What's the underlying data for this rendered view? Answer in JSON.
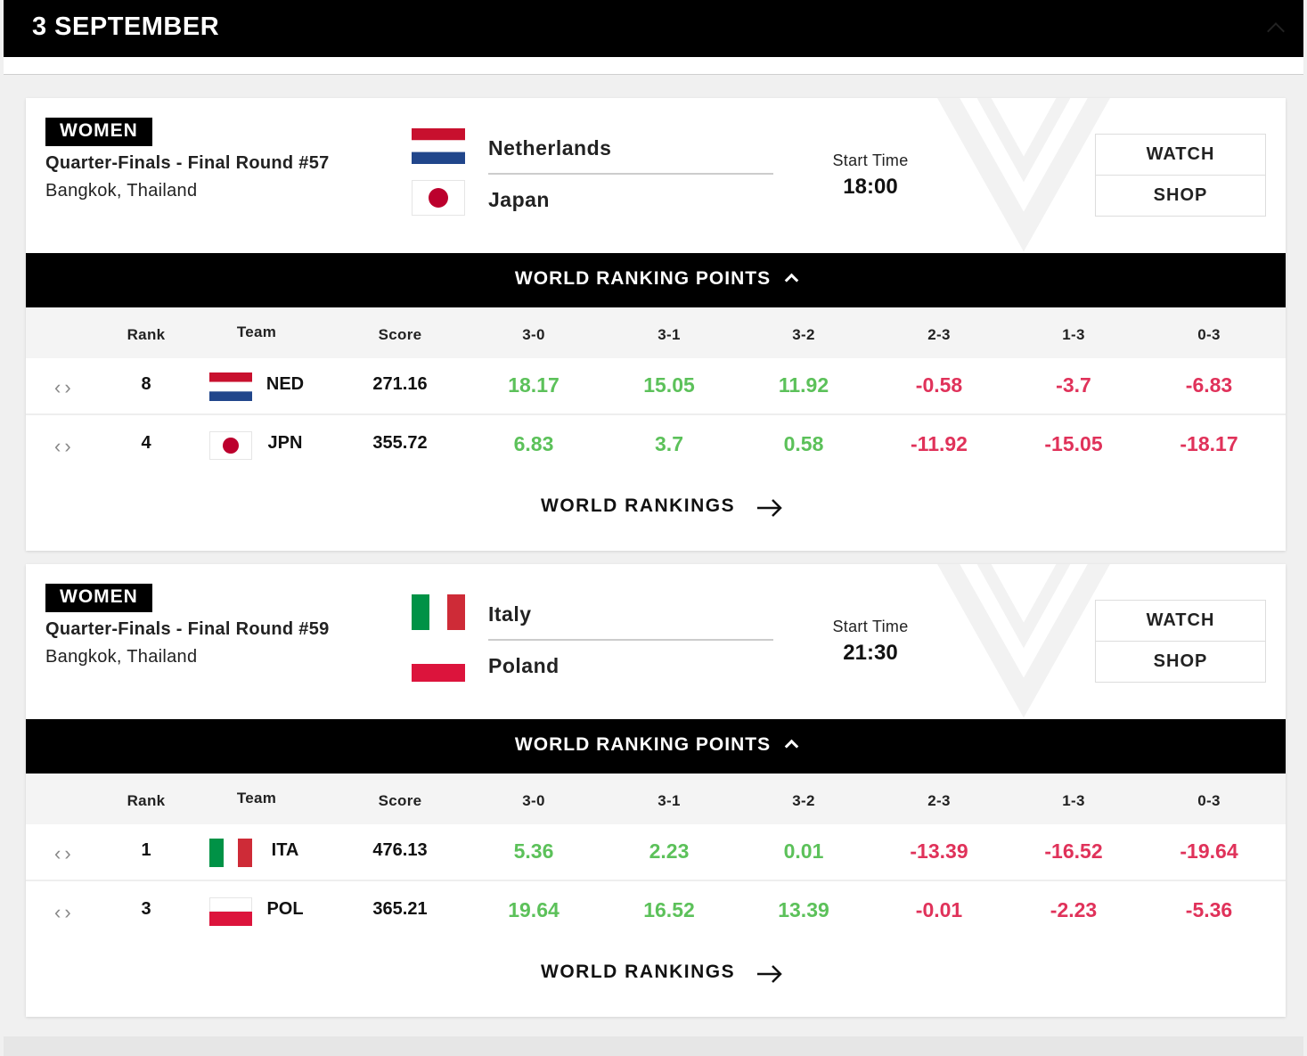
{
  "day_header": {
    "title": "3 SEPTEMBER"
  },
  "matches": [
    {
      "category": "WOMEN",
      "round": "Quarter-Finals - Final Round #57",
      "venue": "Bangkok, Thailand",
      "team1": {
        "name": "Netherlands",
        "flag": "netherlands-flag"
      },
      "team2": {
        "name": "Japan",
        "flag": "japan-flag"
      },
      "start_label": "Start Time",
      "start_time": "18:00",
      "watch_label": "WATCH",
      "shop_label": "SHOP",
      "wrp_title": "WORLD RANKING POINTS",
      "headers": [
        "Rank",
        "Team",
        "Score",
        "3-0",
        "3-1",
        "3-2",
        "2-3",
        "1-3",
        "0-3"
      ],
      "rows": [
        {
          "rank": "8",
          "team": "NED",
          "flag": "netherlands-flag",
          "score": "271.16",
          "points": [
            "18.17",
            "15.05",
            "11.92",
            "-0.58",
            "-3.7",
            "-6.83"
          ]
        },
        {
          "rank": "4",
          "team": "JPN",
          "flag": "japan-flag",
          "score": "355.72",
          "points": [
            "6.83",
            "3.7",
            "0.58",
            "-11.92",
            "-15.05",
            "-18.17"
          ]
        }
      ],
      "world_rankings_label": "WORLD RANKINGS"
    },
    {
      "category": "WOMEN",
      "round": "Quarter-Finals - Final Round #59",
      "venue": "Bangkok, Thailand",
      "team1": {
        "name": "Italy",
        "flag": "italy-flag"
      },
      "team2": {
        "name": "Poland",
        "flag": "poland-flag"
      },
      "start_label": "Start Time",
      "start_time": "21:30",
      "watch_label": "WATCH",
      "shop_label": "SHOP",
      "wrp_title": "WORLD RANKING POINTS",
      "headers": [
        "Rank",
        "Team",
        "Score",
        "3-0",
        "3-1",
        "3-2",
        "2-3",
        "1-3",
        "0-3"
      ],
      "rows": [
        {
          "rank": "1",
          "team": "ITA",
          "flag": "italy-flag",
          "score": "476.13",
          "points": [
            "5.36",
            "2.23",
            "0.01",
            "-13.39",
            "-16.52",
            "-19.64"
          ]
        },
        {
          "rank": "3",
          "team": "POL",
          "flag": "poland-flag",
          "score": "365.21",
          "points": [
            "19.64",
            "16.52",
            "13.39",
            "-0.01",
            "-2.23",
            "-5.36"
          ]
        }
      ],
      "world_rankings_label": "WORLD RANKINGS"
    }
  ],
  "colors": {
    "positive": "#5cc15a",
    "negative": "#e0325a",
    "bar": "#000000"
  }
}
